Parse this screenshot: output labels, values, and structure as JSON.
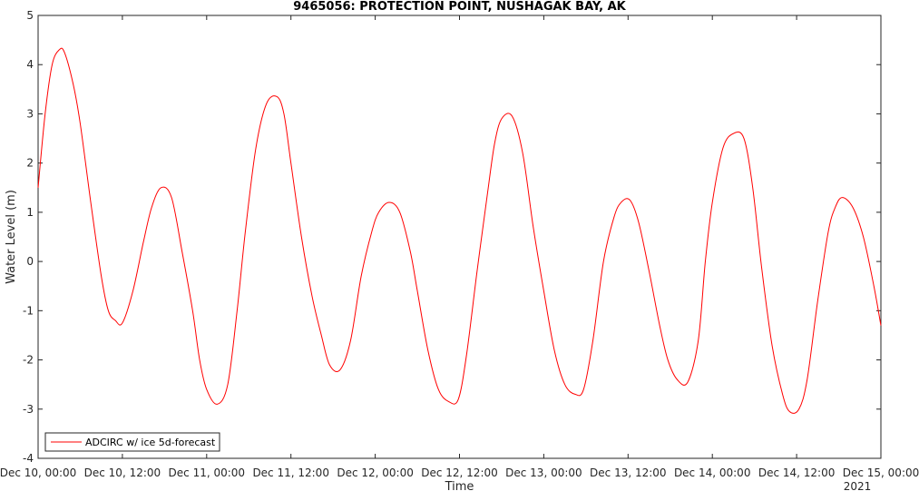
{
  "chart_data": {
    "type": "line",
    "title": "9465056: PROTECTION POINT, NUSHAGAK BAY, AK",
    "xlabel": "Time",
    "ylabel": "Water Level (m)",
    "xlim": [
      "2020-12-10T00:00",
      "2020-12-15T00:00"
    ],
    "ylim": [
      -4,
      5
    ],
    "x_ticks": [
      "Dec 10, 00:00",
      "Dec 10, 12:00",
      "Dec 11, 00:00",
      "Dec 11, 12:00",
      "Dec 12, 00:00",
      "Dec 12, 12:00",
      "Dec 13, 00:00",
      "Dec 13, 12:00",
      "Dec 14, 00:00",
      "Dec 14, 12:00",
      "Dec 15, 00:00"
    ],
    "x_year_label": "2021",
    "y_ticks": [
      "-4",
      "-3",
      "-2",
      "-1",
      "0",
      "1",
      "2",
      "3",
      "4",
      "5"
    ],
    "grid": false,
    "legend_position": "bottom-left",
    "series": [
      {
        "name": "ADCIRC w/ ice 5d-forecast",
        "color": "#ff0000",
        "x": [
          "2020-12-10T00:00",
          "2020-12-10T01:00",
          "2020-12-10T02:00",
          "2020-12-10T03:00",
          "2020-12-10T03:45",
          "2020-12-10T05:00",
          "2020-12-10T06:00",
          "2020-12-10T07:30",
          "2020-12-10T09:00",
          "2020-12-10T10:00",
          "2020-12-10T11:00",
          "2020-12-10T12:00",
          "2020-12-10T13:30",
          "2020-12-10T15:00",
          "2020-12-10T16:10",
          "2020-12-10T17:30",
          "2020-12-10T19:00",
          "2020-12-10T20:30",
          "2020-12-10T22:00",
          "2020-12-10T23:00",
          "2020-12-11T00:00",
          "2020-12-11T01:30",
          "2020-12-11T03:00",
          "2020-12-11T04:20",
          "2020-12-11T05:30",
          "2020-12-11T07:00",
          "2020-12-11T08:30",
          "2020-12-11T10:00",
          "2020-12-11T11:00",
          "2020-12-11T12:00",
          "2020-12-11T13:30",
          "2020-12-11T15:00",
          "2020-12-11T16:20",
          "2020-12-11T17:30",
          "2020-12-11T19:00",
          "2020-12-11T20:30",
          "2020-12-11T22:00",
          "2020-12-11T23:30",
          "2020-12-12T00:30",
          "2020-12-12T02:00",
          "2020-12-12T03:30",
          "2020-12-12T05:00",
          "2020-12-12T06:00",
          "2020-12-12T07:30",
          "2020-12-12T09:00",
          "2020-12-12T10:30",
          "2020-12-12T11:50",
          "2020-12-12T13:00",
          "2020-12-12T14:30",
          "2020-12-12T16:00",
          "2020-12-12T17:00",
          "2020-12-12T18:00",
          "2020-12-12T19:30",
          "2020-12-12T21:00",
          "2020-12-12T22:30",
          "2020-12-13T00:00",
          "2020-12-13T01:30",
          "2020-12-13T03:00",
          "2020-12-13T04:30",
          "2020-12-13T05:40",
          "2020-12-13T07:00",
          "2020-12-13T08:30",
          "2020-12-13T10:00",
          "2020-12-13T11:00",
          "2020-12-13T12:15",
          "2020-12-13T13:30",
          "2020-12-13T15:00",
          "2020-12-13T16:30",
          "2020-12-13T17:40",
          "2020-12-13T19:00",
          "2020-12-13T20:30",
          "2020-12-13T22:00",
          "2020-12-13T23:00",
          "2020-12-14T00:00",
          "2020-12-14T01:30",
          "2020-12-14T03:00",
          "2020-12-14T04:30",
          "2020-12-14T05:45",
          "2020-12-14T07:00",
          "2020-12-14T08:30",
          "2020-12-14T10:00",
          "2020-12-14T11:00",
          "2020-12-14T12:20",
          "2020-12-14T13:30",
          "2020-12-14T15:00",
          "2020-12-14T16:30",
          "2020-12-14T17:30",
          "2020-12-14T18:30",
          "2020-12-14T20:00",
          "2020-12-14T21:30",
          "2020-12-14T23:00",
          "2020-12-15T00:00"
        ],
        "values": [
          1.5,
          3.0,
          4.0,
          4.3,
          4.25,
          3.6,
          2.8,
          1.2,
          -0.3,
          -1.0,
          -1.2,
          -1.25,
          -0.6,
          0.4,
          1.1,
          1.5,
          1.3,
          0.2,
          -1.0,
          -2.0,
          -2.6,
          -2.9,
          -2.5,
          -1.0,
          0.6,
          2.3,
          3.2,
          3.35,
          3.0,
          2.0,
          0.5,
          -0.7,
          -1.5,
          -2.1,
          -2.2,
          -1.6,
          -0.3,
          0.6,
          1.0,
          1.2,
          1.0,
          0.2,
          -0.6,
          -1.8,
          -2.6,
          -2.85,
          -2.8,
          -1.9,
          -0.2,
          1.4,
          2.4,
          2.9,
          2.95,
          2.2,
          0.7,
          -0.6,
          -1.8,
          -2.5,
          -2.7,
          -2.6,
          -1.6,
          0.0,
          0.9,
          1.2,
          1.25,
          0.8,
          -0.2,
          -1.3,
          -2.0,
          -2.4,
          -2.45,
          -1.6,
          0.0,
          1.2,
          2.3,
          2.6,
          2.5,
          1.5,
          -0.1,
          -1.7,
          -2.7,
          -3.05,
          -3.0,
          -2.4,
          -0.8,
          0.6,
          1.1,
          1.3,
          1.1,
          0.5,
          -0.5,
          -1.3
        ]
      }
    ]
  }
}
